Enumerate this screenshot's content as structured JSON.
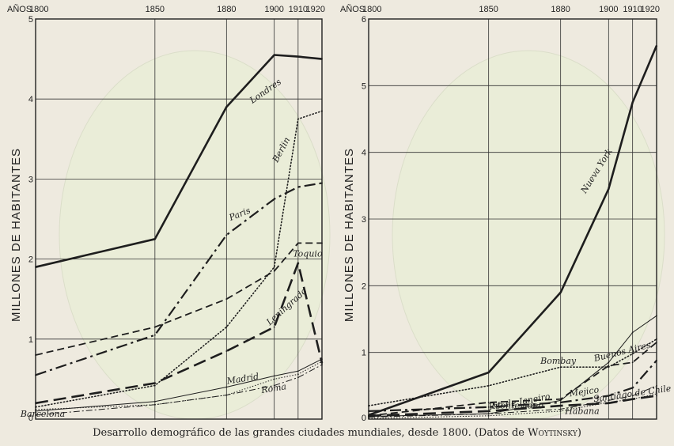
{
  "caption": {
    "main": "Desarrollo demográfico de las grandes ciudades mundiales, desde 1800. (Datos de ",
    "source": "Woytinsky",
    "close": ")"
  },
  "chart_data": [
    {
      "type": "line",
      "x_axis_title": "AÑOS",
      "ylabel": "MILLONES DE HABITANTES",
      "x_ticks": [
        1800,
        1850,
        1880,
        1900,
        1910,
        1920
      ],
      "y_ticks": [
        1,
        2,
        3,
        4,
        5
      ],
      "xlim": [
        1800,
        1920
      ],
      "ylim": [
        0,
        5
      ],
      "grid": true,
      "series": [
        {
          "name": "Londres",
          "style": "solid-thick",
          "x": [
            1800,
            1850,
            1880,
            1900,
            1910,
            1920
          ],
          "y": [
            1.9,
            2.25,
            3.9,
            4.55,
            4.53,
            4.5
          ]
        },
        {
          "name": "Berlin",
          "style": "dotted-circles",
          "x": [
            1800,
            1850,
            1880,
            1900,
            1910,
            1920
          ],
          "y": [
            0.15,
            0.42,
            1.15,
            1.9,
            3.75,
            3.85
          ]
        },
        {
          "name": "Paris",
          "style": "dash-dot",
          "x": [
            1800,
            1850,
            1880,
            1900,
            1910,
            1920
          ],
          "y": [
            0.55,
            1.05,
            2.3,
            2.75,
            2.9,
            2.95
          ]
        },
        {
          "name": "Toquio",
          "style": "dashed",
          "x": [
            1800,
            1850,
            1880,
            1900,
            1910,
            1920
          ],
          "y": [
            0.8,
            1.15,
            1.5,
            1.85,
            2.2,
            2.2
          ]
        },
        {
          "name": "Leningrado",
          "style": "long-dash",
          "x": [
            1800,
            1850,
            1880,
            1900,
            1910,
            1920
          ],
          "y": [
            0.2,
            0.45,
            0.85,
            1.15,
            1.95,
            0.7
          ]
        },
        {
          "name": "Madrid",
          "style": "thin-solid",
          "x": [
            1800,
            1850,
            1880,
            1900,
            1910,
            1920
          ],
          "y": [
            0.1,
            0.22,
            0.4,
            0.54,
            0.6,
            0.75
          ]
        },
        {
          "name": "Roma",
          "style": "thin-dash-dot",
          "x": [
            1800,
            1850,
            1880,
            1900,
            1910,
            1920
          ],
          "y": [
            0.05,
            0.18,
            0.3,
            0.42,
            0.52,
            0.68
          ]
        },
        {
          "name": "Barcelona",
          "style": "thin-dotted",
          "x": [
            1800,
            1850,
            1880,
            1900,
            1910,
            1920
          ],
          "y": [
            0.12,
            0.18,
            0.3,
            0.5,
            0.56,
            0.72
          ]
        }
      ]
    },
    {
      "type": "line",
      "x_axis_title": "AÑOS",
      "ylabel": "MILLONES DE HABITANTES",
      "x_ticks": [
        1800,
        1850,
        1880,
        1900,
        1910,
        1920
      ],
      "y_ticks": [
        1,
        2,
        3,
        4,
        5,
        6
      ],
      "xlim": [
        1800,
        1920
      ],
      "ylim": [
        0,
        6
      ],
      "grid": true,
      "series": [
        {
          "name": "Nueva York",
          "style": "solid-thick",
          "x": [
            1800,
            1850,
            1880,
            1900,
            1910,
            1920
          ],
          "y": [
            0.06,
            0.7,
            1.9,
            3.45,
            4.75,
            5.6
          ]
        },
        {
          "name": "Buenos Aires",
          "style": "thin-solid",
          "x": [
            1800,
            1850,
            1880,
            1900,
            1910,
            1920
          ],
          "y": [
            0.04,
            0.08,
            0.28,
            0.85,
            1.3,
            1.55
          ]
        },
        {
          "name": "Bombay",
          "style": "dotted-circles",
          "x": [
            1800,
            1850,
            1880,
            1900,
            1910,
            1920
          ],
          "y": [
            0.2,
            0.5,
            0.78,
            0.78,
            0.98,
            1.2
          ]
        },
        {
          "name": "Rio de Janeiro",
          "style": "dashed",
          "x": [
            1800,
            1850,
            1880,
            1900,
            1910,
            1920
          ],
          "y": [
            0.05,
            0.25,
            0.3,
            0.8,
            0.85,
            1.15
          ]
        },
        {
          "name": "Mejico",
          "style": "dash-dot",
          "x": [
            1800,
            1850,
            1880,
            1900,
            1910,
            1920
          ],
          "y": [
            0.12,
            0.18,
            0.25,
            0.35,
            0.47,
            0.88
          ]
        },
        {
          "name": "Santiago de Chile",
          "style": "thin-dash-dot",
          "x": [
            1800,
            1850,
            1880,
            1900,
            1910,
            1920
          ],
          "y": [
            0.03,
            0.08,
            0.15,
            0.28,
            0.35,
            0.5
          ]
        },
        {
          "name": "Montevideo",
          "style": "thin-dotted",
          "x": [
            1800,
            1850,
            1880,
            1900,
            1910,
            1920
          ],
          "y": [
            0.01,
            0.05,
            0.12,
            0.25,
            0.3,
            0.38
          ]
        },
        {
          "name": "Habana",
          "style": "long-dash",
          "x": [
            1800,
            1850,
            1880,
            1900,
            1910,
            1920
          ],
          "y": [
            0.05,
            0.12,
            0.2,
            0.24,
            0.3,
            0.35
          ]
        }
      ]
    }
  ]
}
